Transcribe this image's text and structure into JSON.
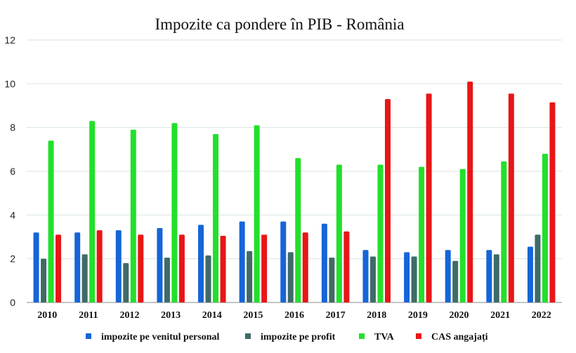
{
  "chart_data": {
    "type": "bar",
    "title": "Impozite ca pondere în PIB - România",
    "xlabel": "",
    "ylabel": "",
    "ylim": [
      0,
      12
    ],
    "yticks": [
      0,
      2,
      4,
      6,
      8,
      10,
      12
    ],
    "grid": true,
    "legend_position": "bottom",
    "categories": [
      "2010",
      "2011",
      "2012",
      "2013",
      "2014",
      "2015",
      "2016",
      "2017",
      "2018",
      "2019",
      "2020",
      "2021",
      "2022"
    ],
    "series": [
      {
        "name": "impozite pe venitul personal",
        "color": "#1565d8",
        "values": [
          3.2,
          3.2,
          3.3,
          3.4,
          3.55,
          3.7,
          3.7,
          3.6,
          2.4,
          2.3,
          2.4,
          2.4,
          2.55
        ]
      },
      {
        "name": "impozite pe profit",
        "color": "#3e6b68",
        "values": [
          2.0,
          2.2,
          1.8,
          2.05,
          2.15,
          2.35,
          2.3,
          2.05,
          2.1,
          2.1,
          1.9,
          2.2,
          3.1
        ]
      },
      {
        "name": "TVA",
        "color": "#22e02a",
        "values": [
          7.4,
          8.3,
          7.9,
          8.2,
          7.7,
          8.1,
          6.6,
          6.3,
          6.3,
          6.2,
          6.1,
          6.45,
          6.8
        ]
      },
      {
        "name": "CAS angajați",
        "color": "#e81616",
        "values": [
          3.1,
          3.3,
          3.1,
          3.1,
          3.05,
          3.1,
          3.2,
          3.25,
          9.3,
          9.55,
          10.1,
          9.55,
          9.15
        ]
      }
    ]
  }
}
